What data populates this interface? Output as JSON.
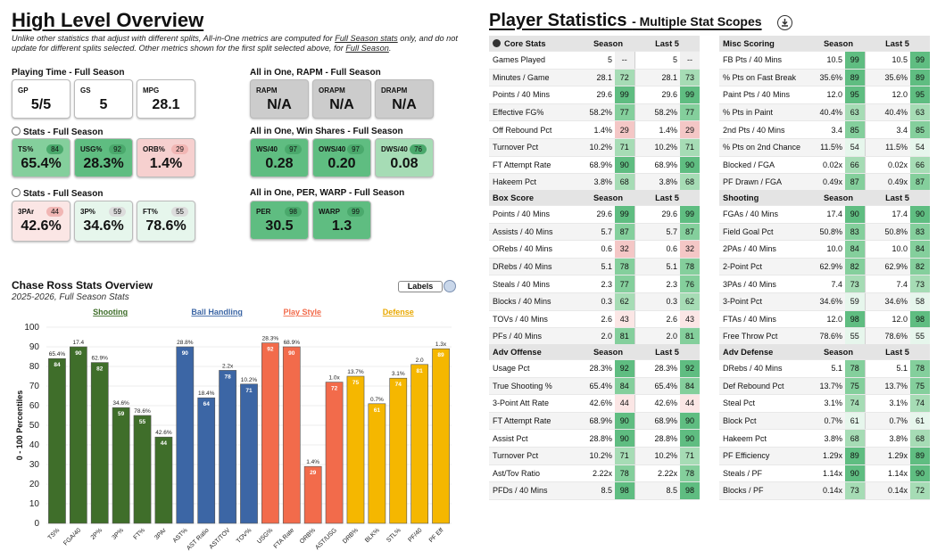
{
  "overview": {
    "title": "High Level Overview",
    "disclaimer_a": "Unlike other statistics that adjust with different splits, All-in-One metrics are computed for ",
    "disclaimer_link1": "Full Season stats",
    "disclaimer_b": " only, and do not update for different splits selected. Other metrics shown for the first split selected above, for ",
    "disclaimer_link2": "Full Season",
    "disclaimer_c": ".",
    "playing_time": {
      "title": "Playing Time - Full Season",
      "cards": [
        {
          "label": "GP",
          "value": "5/5"
        },
        {
          "label": "GS",
          "value": "5"
        },
        {
          "label": "MPG",
          "value": "28.1"
        }
      ]
    },
    "rapm": {
      "title": "All in One, RAPM - Full Season",
      "cards": [
        {
          "label": "RAPM",
          "value": "N/A"
        },
        {
          "label": "ORAPM",
          "value": "N/A"
        },
        {
          "label": "DRAPM",
          "value": "N/A"
        }
      ]
    },
    "stats1": {
      "title": "Stats - Full Season",
      "cards": [
        {
          "label": "TS%",
          "value": "65.4%",
          "pct": "84"
        },
        {
          "label": "USG%",
          "value": "28.3%",
          "pct": "92"
        },
        {
          "label": "ORB%",
          "value": "1.4%",
          "pct": "29"
        }
      ]
    },
    "winshares": {
      "title": "All in One, Win Shares - Full Season",
      "cards": [
        {
          "label": "WS/40",
          "value": "0.28",
          "pct": "97"
        },
        {
          "label": "OWS/40",
          "value": "0.20",
          "pct": "97"
        },
        {
          "label": "DWS/40",
          "value": "0.08",
          "pct": "76"
        }
      ]
    },
    "stats2": {
      "title": "Stats - Full Season",
      "cards": [
        {
          "label": "3PAr",
          "value": "42.6%",
          "pct": "44"
        },
        {
          "label": "3P%",
          "value": "34.6%",
          "pct": "59"
        },
        {
          "label": "FT%",
          "value": "78.6%",
          "pct": "55"
        }
      ]
    },
    "per": {
      "title": "All in One, PER, WARP - Full Season",
      "cards": [
        {
          "label": "PER",
          "value": "30.5",
          "pct": "98"
        },
        {
          "label": "WARP",
          "value": "1.3",
          "pct": "99"
        }
      ]
    }
  },
  "chart_header": {
    "title": "Chase Ross Stats Overview",
    "subtitle": "2025-2026, Full Season Stats",
    "labels_button": "Labels"
  },
  "chart_data": {
    "type": "bar",
    "ylabel": "0 - 100 Percentiles",
    "ylim": [
      0,
      100
    ],
    "yticks": [
      "0",
      "10",
      "20",
      "30",
      "40",
      "50",
      "60",
      "70",
      "80",
      "90",
      "100"
    ],
    "groups": [
      {
        "name": "Shooting",
        "color": "#3f6e2a"
      },
      {
        "name": "Ball Handling",
        "color": "#3c66a5"
      },
      {
        "name": "Play Style",
        "color": "#f26b4b"
      },
      {
        "name": "Defense",
        "color": "#f5b700"
      }
    ],
    "bars": [
      {
        "category": "TS%",
        "group": "Shooting",
        "value": 84,
        "raw": "65.4%"
      },
      {
        "category": "FGA/40",
        "group": "Shooting",
        "value": 90,
        "raw": "17.4"
      },
      {
        "category": "2P%",
        "group": "Shooting",
        "value": 82,
        "raw": "62.9%"
      },
      {
        "category": "3P%",
        "group": "Shooting",
        "value": 59,
        "raw": "34.6%"
      },
      {
        "category": "FT%",
        "group": "Shooting",
        "value": 55,
        "raw": "78.6%"
      },
      {
        "category": "3PAr",
        "group": "Shooting",
        "value": 44,
        "raw": "42.6%"
      },
      {
        "category": "AST%",
        "group": "Ball Handling",
        "value": 90,
        "raw": "28.8%"
      },
      {
        "category": "AST Ratio",
        "group": "Ball Handling",
        "value": 64,
        "raw": "18.4%"
      },
      {
        "category": "AST/TOV",
        "group": "Ball Handling",
        "value": 78,
        "raw": "2.2x"
      },
      {
        "category": "TOV%",
        "group": "Ball Handling",
        "value": 71,
        "raw": "10.2%"
      },
      {
        "category": "USG%",
        "group": "Play Style",
        "value": 92,
        "raw": "28.3%"
      },
      {
        "category": "FTA Rate",
        "group": "Play Style",
        "value": 90,
        "raw": "68.9%"
      },
      {
        "category": "ORB%",
        "group": "Play Style",
        "value": 29,
        "raw": "1.4%"
      },
      {
        "category": "AST/USG",
        "group": "Play Style",
        "value": 72,
        "raw": "1.0x"
      },
      {
        "category": "DRB%",
        "group": "Defense",
        "value": 75,
        "raw": "13.7%"
      },
      {
        "category": "BLK%",
        "group": "Defense",
        "value": 61,
        "raw": "0.7%"
      },
      {
        "category": "STL%",
        "group": "Defense",
        "value": 74,
        "raw": "3.1%"
      },
      {
        "category": "PF/40",
        "group": "Defense",
        "value": 81,
        "raw": "2.0"
      },
      {
        "category": "PF Eff",
        "group": "Defense",
        "value": 89,
        "raw": "1.3x"
      }
    ]
  },
  "player_stats": {
    "title": "Player Statistics",
    "subtitle": "- Multiple Stat Scopes",
    "tables": [
      {
        "title": "Core Stats",
        "col1": "Season",
        "col2": "Last 5",
        "rows": [
          [
            "Games Played",
            "5",
            "--",
            "5",
            "--"
          ],
          [
            "Minutes / Game",
            "28.1",
            "72",
            "28.1",
            "73"
          ],
          [
            "Points / 40 Mins",
            "29.6",
            "99",
            "29.6",
            "99"
          ],
          [
            "Effective FG%",
            "58.2%",
            "77",
            "58.2%",
            "77"
          ],
          [
            "Off Rebound Pct",
            "1.4%",
            "29",
            "1.4%",
            "29"
          ],
          [
            "Turnover Pct",
            "10.2%",
            "71",
            "10.2%",
            "71"
          ],
          [
            "FT Attempt Rate",
            "68.9%",
            "90",
            "68.9%",
            "90"
          ],
          [
            "Hakeem Pct",
            "3.8%",
            "68",
            "3.8%",
            "68"
          ]
        ]
      },
      {
        "title": "Misc Scoring",
        "col1": "Season",
        "col2": "Last 5",
        "rows": [
          [
            "FB Pts / 40 Mins",
            "10.5",
            "99",
            "10.5",
            "99"
          ],
          [
            "% Pts on Fast Break",
            "35.6%",
            "89",
            "35.6%",
            "89"
          ],
          [
            "Paint Pts / 40 Mins",
            "12.0",
            "95",
            "12.0",
            "95"
          ],
          [
            "% Pts in Paint",
            "40.4%",
            "63",
            "40.4%",
            "63"
          ],
          [
            "2nd Pts / 40 Mins",
            "3.4",
            "85",
            "3.4",
            "85"
          ],
          [
            "% Pts on 2nd Chance",
            "11.5%",
            "54",
            "11.5%",
            "54"
          ],
          [
            "Blocked / FGA",
            "0.02x",
            "66",
            "0.02x",
            "66"
          ],
          [
            "PF Drawn / FGA",
            "0.49x",
            "87",
            "0.49x",
            "87"
          ]
        ]
      },
      {
        "title": "Box Score",
        "col1": "Season",
        "col2": "Last 5",
        "rows": [
          [
            "Points / 40 Mins",
            "29.6",
            "99",
            "29.6",
            "99"
          ],
          [
            "Assists / 40 Mins",
            "5.7",
            "87",
            "5.7",
            "87"
          ],
          [
            "ORebs / 40 Mins",
            "0.6",
            "32",
            "0.6",
            "32"
          ],
          [
            "DRebs / 40 Mins",
            "5.1",
            "78",
            "5.1",
            "78"
          ],
          [
            "Steals / 40 Mins",
            "2.3",
            "77",
            "2.3",
            "76"
          ],
          [
            "Blocks / 40 Mins",
            "0.3",
            "62",
            "0.3",
            "62"
          ],
          [
            "TOVs / 40 Mins",
            "2.6",
            "43",
            "2.6",
            "43"
          ],
          [
            "PFs / 40 Mins",
            "2.0",
            "81",
            "2.0",
            "81"
          ]
        ]
      },
      {
        "title": "Shooting",
        "col1": "Season",
        "col2": "Last 5",
        "rows": [
          [
            "FGAs / 40 Mins",
            "17.4",
            "90",
            "17.4",
            "90"
          ],
          [
            "Field Goal Pct",
            "50.8%",
            "83",
            "50.8%",
            "83"
          ],
          [
            "2PAs / 40 Mins",
            "10.0",
            "84",
            "10.0",
            "84"
          ],
          [
            "2-Point Pct",
            "62.9%",
            "82",
            "62.9%",
            "82"
          ],
          [
            "3PAs / 40 Mins",
            "7.4",
            "73",
            "7.4",
            "73"
          ],
          [
            "3-Point Pct",
            "34.6%",
            "59",
            "34.6%",
            "58"
          ],
          [
            "FTAs / 40 Mins",
            "12.0",
            "98",
            "12.0",
            "98"
          ],
          [
            "Free Throw Pct",
            "78.6%",
            "55",
            "78.6%",
            "55"
          ]
        ]
      },
      {
        "title": "Adv Offense",
        "col1": "Season",
        "col2": "Last 5",
        "rows": [
          [
            "Usage Pct",
            "28.3%",
            "92",
            "28.3%",
            "92"
          ],
          [
            "True Shooting %",
            "65.4%",
            "84",
            "65.4%",
            "84"
          ],
          [
            "3-Point Att Rate",
            "42.6%",
            "44",
            "42.6%",
            "44"
          ],
          [
            "FT Attempt Rate",
            "68.9%",
            "90",
            "68.9%",
            "90"
          ],
          [
            "Assist Pct",
            "28.8%",
            "90",
            "28.8%",
            "90"
          ],
          [
            "Turnover Pct",
            "10.2%",
            "71",
            "10.2%",
            "71"
          ],
          [
            "Ast/Tov Ratio",
            "2.22x",
            "78",
            "2.22x",
            "78"
          ],
          [
            "PFDs / 40 Mins",
            "8.5",
            "98",
            "8.5",
            "98"
          ]
        ]
      },
      {
        "title": "Adv Defense",
        "col1": "Season",
        "col2": "Last 5",
        "rows": [
          [
            "DRebs / 40 Mins",
            "5.1",
            "78",
            "5.1",
            "78"
          ],
          [
            "Def Rebound Pct",
            "13.7%",
            "75",
            "13.7%",
            "75"
          ],
          [
            "Steal Pct",
            "3.1%",
            "74",
            "3.1%",
            "74"
          ],
          [
            "Block Pct",
            "0.7%",
            "61",
            "0.7%",
            "61"
          ],
          [
            "Hakeem Pct",
            "3.8%",
            "68",
            "3.8%",
            "68"
          ],
          [
            "PF Efficiency",
            "1.29x",
            "89",
            "1.29x",
            "89"
          ],
          [
            "Steals / PF",
            "1.14x",
            "90",
            "1.14x",
            "90"
          ],
          [
            "Blocks / PF",
            "0.14x",
            "73",
            "0.14x",
            "72"
          ]
        ]
      }
    ]
  }
}
